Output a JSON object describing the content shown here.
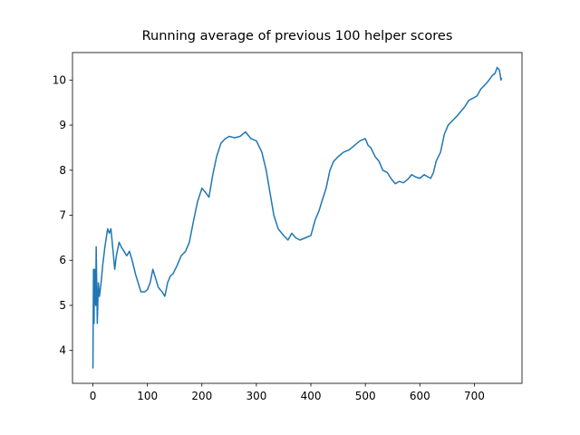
{
  "chart_data": {
    "type": "line",
    "title": "Running average of previous 100 helper scores",
    "x": [
      0,
      1,
      2,
      3,
      5,
      6,
      8,
      10,
      12,
      15,
      18,
      22,
      27,
      30,
      33,
      37,
      40,
      43,
      48,
      52,
      57,
      62,
      67,
      72,
      78,
      83,
      88,
      95,
      100,
      105,
      110,
      115,
      120,
      127,
      132,
      137,
      142,
      147,
      155,
      162,
      170,
      177,
      185,
      192,
      200,
      207,
      213,
      220,
      227,
      235,
      243,
      250,
      260,
      270,
      280,
      290,
      300,
      310,
      318,
      325,
      332,
      340,
      350,
      358,
      365,
      372,
      380,
      390,
      400,
      408,
      415,
      420,
      428,
      435,
      442,
      450,
      460,
      470,
      480,
      490,
      500,
      505,
      510,
      518,
      525,
      532,
      540,
      548,
      555,
      562,
      570,
      578,
      585,
      592,
      600,
      608,
      615,
      620,
      625,
      630,
      638,
      645,
      652,
      660,
      668,
      675,
      682,
      690,
      698,
      705,
      712,
      720,
      727,
      733,
      738,
      742,
      746,
      749,
      750
    ],
    "series": [
      {
        "color": "#1f77b4",
        "values": [
          3.6,
          5.8,
          4.6,
          5.8,
          5.0,
          6.3,
          4.6,
          5.5,
          5.2,
          5.5,
          5.9,
          6.3,
          6.7,
          6.6,
          6.7,
          6.2,
          5.8,
          6.1,
          6.4,
          6.3,
          6.2,
          6.1,
          6.2,
          6.0,
          5.7,
          5.5,
          5.3,
          5.3,
          5.35,
          5.5,
          5.8,
          5.6,
          5.4,
          5.3,
          5.2,
          5.5,
          5.65,
          5.7,
          5.9,
          6.1,
          6.2,
          6.4,
          6.9,
          7.3,
          7.6,
          7.5,
          7.4,
          7.9,
          8.3,
          8.6,
          8.7,
          8.75,
          8.72,
          8.75,
          8.85,
          8.7,
          8.65,
          8.4,
          8.0,
          7.5,
          7.0,
          6.7,
          6.55,
          6.45,
          6.6,
          6.5,
          6.45,
          6.5,
          6.55,
          6.9,
          7.1,
          7.3,
          7.6,
          8.0,
          8.2,
          8.3,
          8.4,
          8.45,
          8.55,
          8.65,
          8.7,
          8.55,
          8.5,
          8.3,
          8.2,
          8.0,
          7.95,
          7.8,
          7.7,
          7.75,
          7.72,
          7.8,
          7.9,
          7.85,
          7.82,
          7.9,
          7.85,
          7.82,
          7.95,
          8.2,
          8.4,
          8.8,
          9.0,
          9.1,
          9.2,
          9.3,
          9.4,
          9.55,
          9.6,
          9.65,
          9.8,
          9.9,
          10.0,
          10.1,
          10.15,
          10.28,
          10.22,
          10.0,
          10.05
        ]
      }
    ],
    "xlim": [
      -37.5,
      787.5
    ],
    "ylim": [
      3.27,
      10.61
    ],
    "xticks": [
      0,
      100,
      200,
      300,
      400,
      500,
      600,
      700
    ],
    "yticks": [
      4,
      5,
      6,
      7,
      8,
      9,
      10
    ]
  }
}
